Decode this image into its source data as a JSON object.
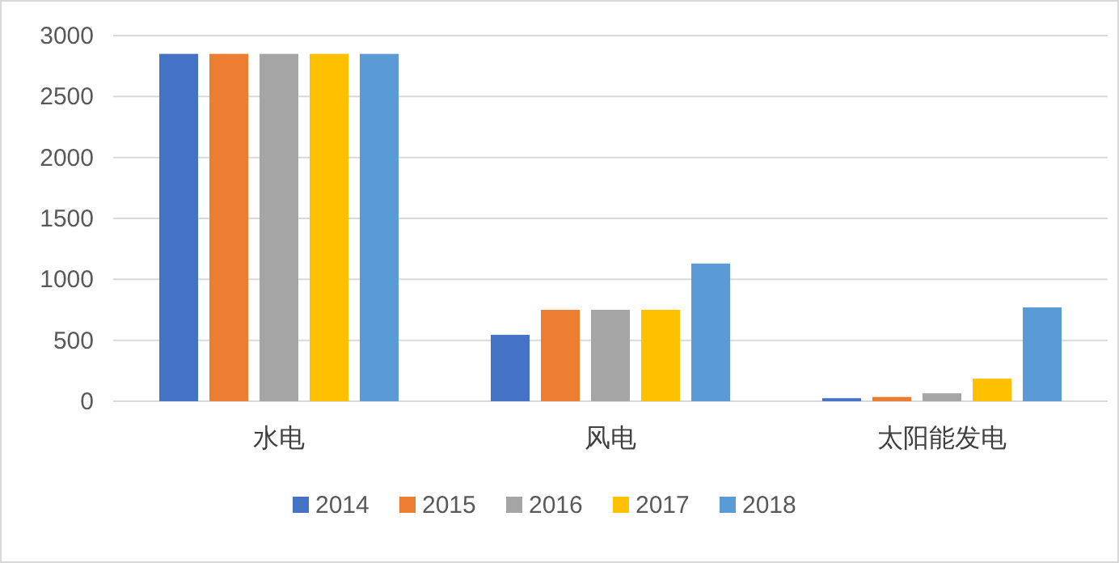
{
  "chart_data": {
    "type": "bar",
    "categories": [
      "水电",
      "风电",
      "太阳能发电"
    ],
    "series": [
      {
        "name": "2014",
        "color": "#4472c4",
        "values": [
          2850,
          545,
          25
        ]
      },
      {
        "name": "2015",
        "color": "#ed7d31",
        "values": [
          2850,
          750,
          35
        ]
      },
      {
        "name": "2016",
        "color": "#a5a5a5",
        "values": [
          2850,
          750,
          65
        ]
      },
      {
        "name": "2017",
        "color": "#ffc000",
        "values": [
          2850,
          750,
          185
        ]
      },
      {
        "name": "2018",
        "color": "#5b9bd5",
        "values": [
          2850,
          1130,
          770
        ]
      }
    ],
    "ylim": [
      0,
      3000
    ],
    "yticks": [
      0,
      500,
      1000,
      1500,
      2000,
      2500,
      3000
    ],
    "grid": "y",
    "legend": "bottom"
  }
}
